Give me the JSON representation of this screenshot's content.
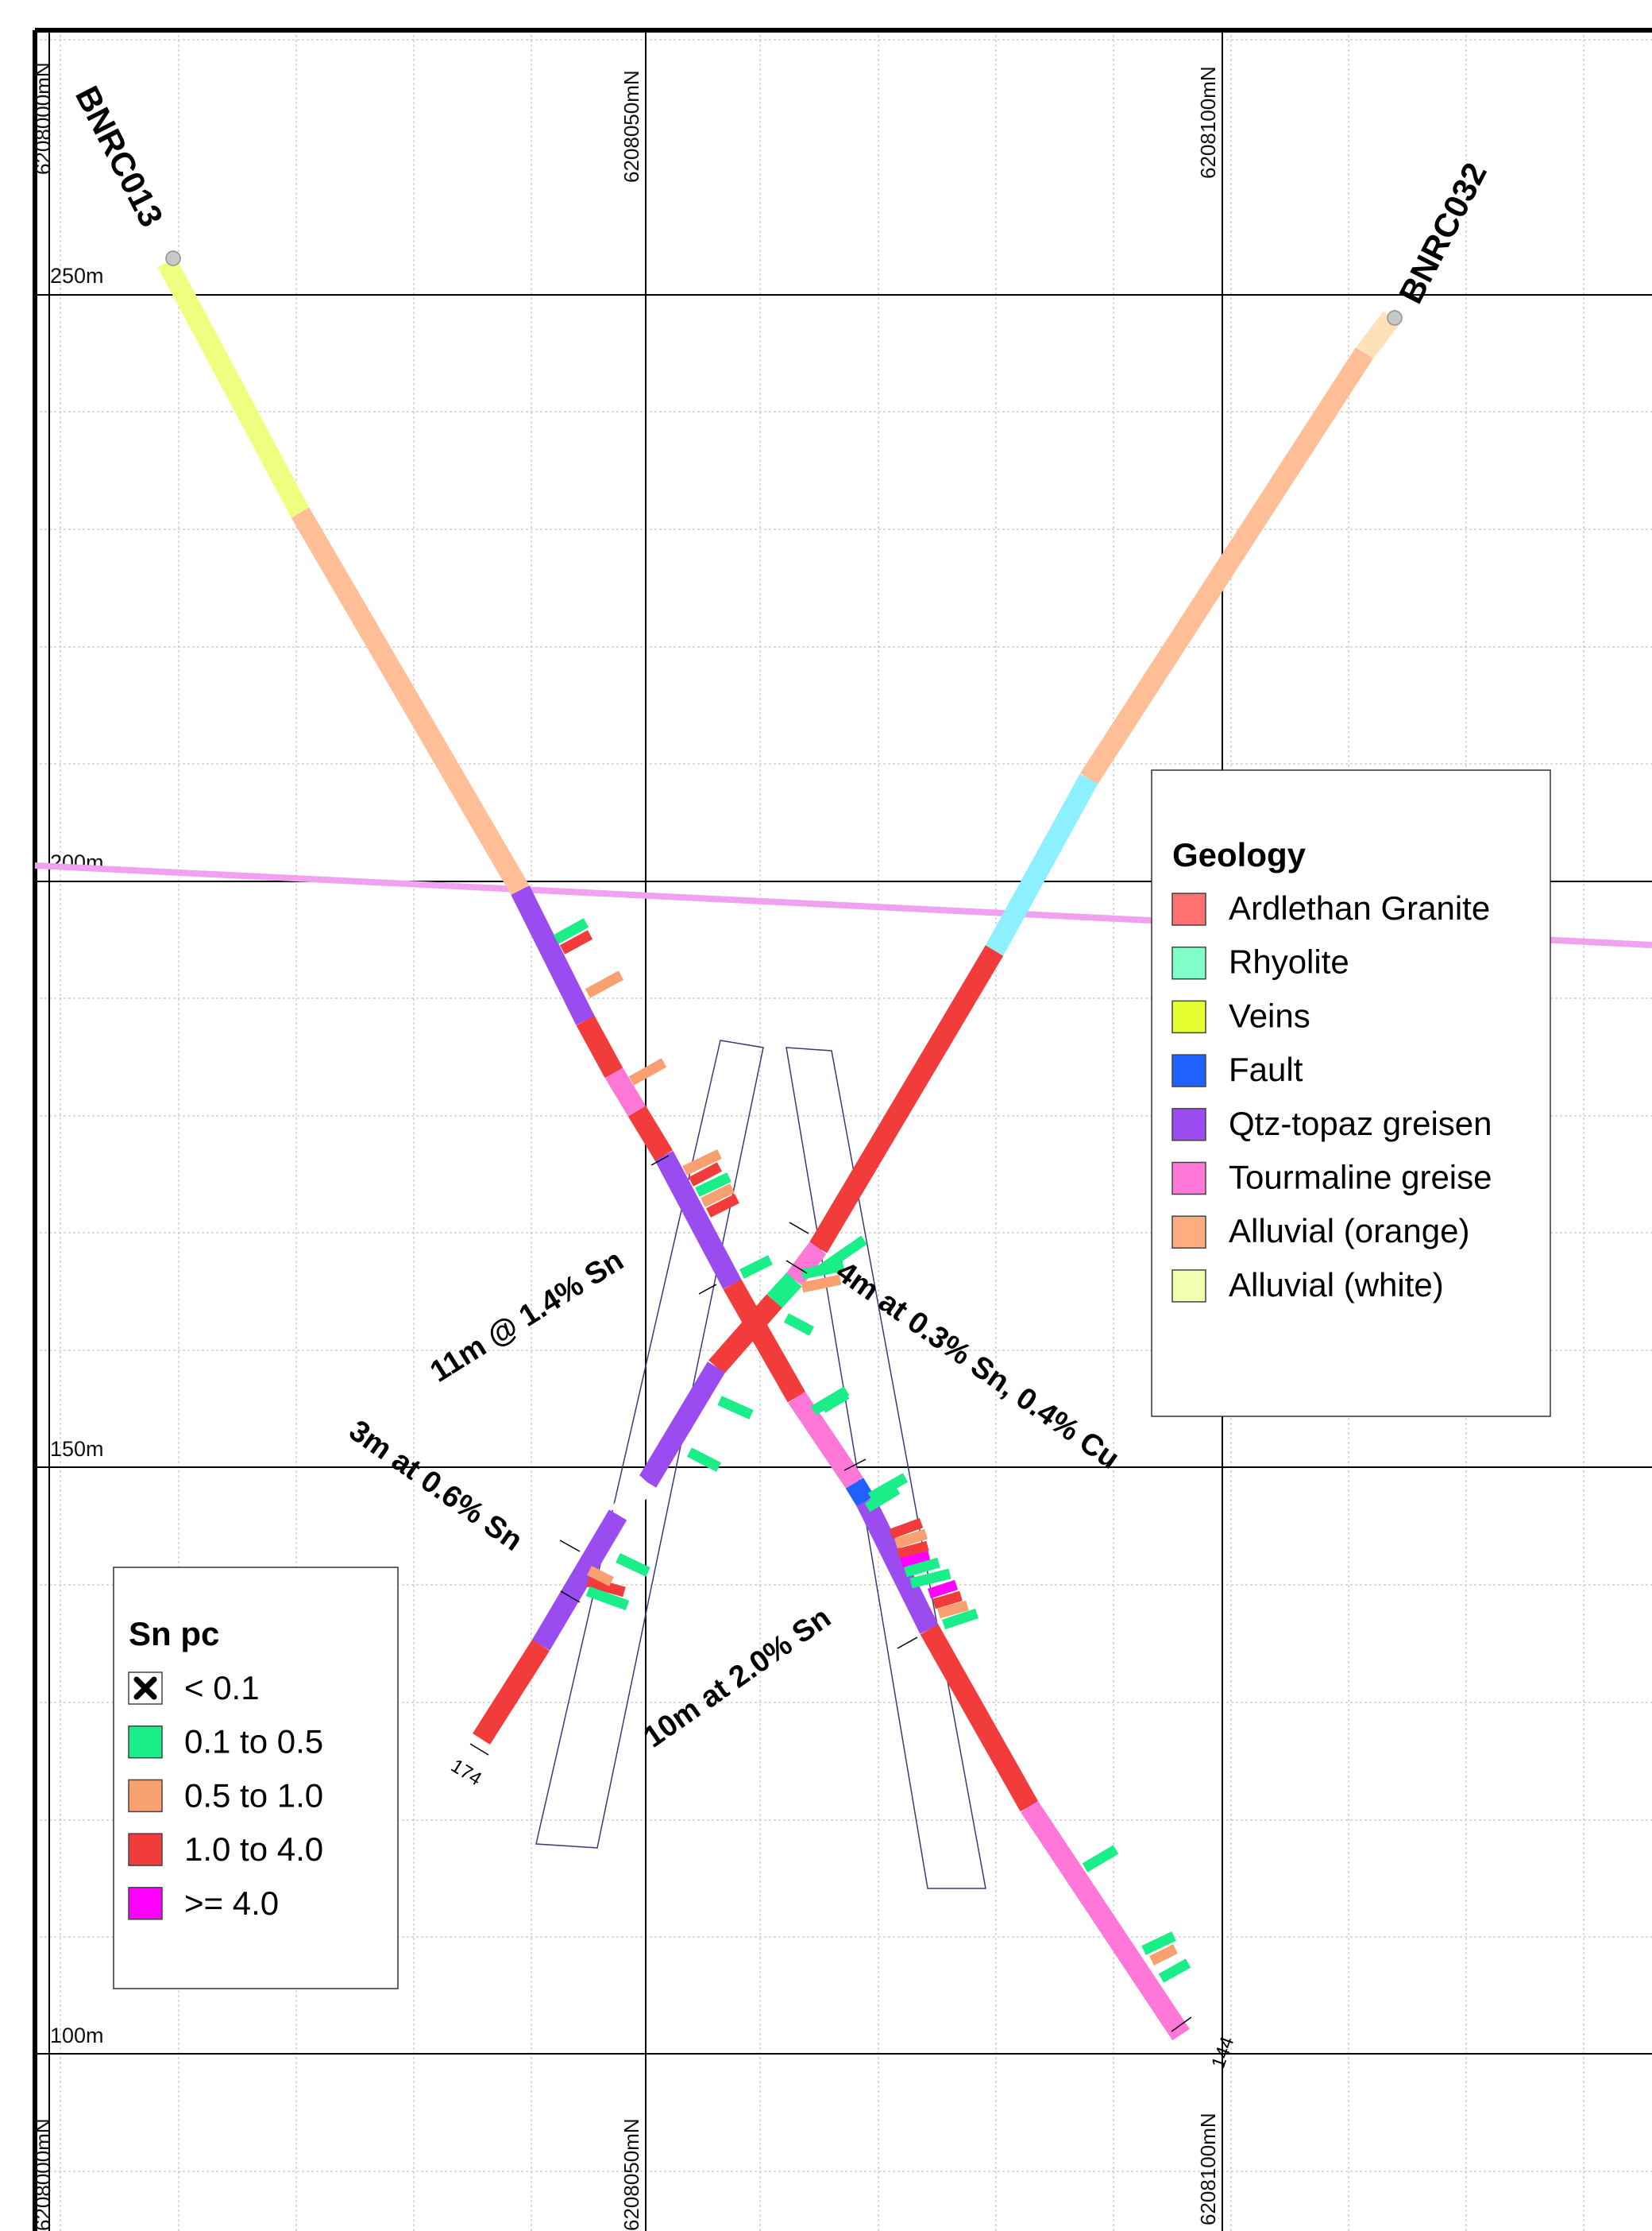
{
  "northing_labels": [
    {
      "id": "partial-left",
      "text": "6208000mN"
    },
    {
      "id": "mid",
      "text": "6208050mN"
    },
    {
      "id": "right",
      "text": "6208100mN"
    }
  ],
  "elevation_labels": [
    "250m",
    "200m",
    "150m",
    "100m"
  ],
  "drillholes": [
    {
      "name": "BNRC013",
      "end_depth": "144"
    },
    {
      "name": "BNRC032",
      "end_depth": "174"
    }
  ],
  "intercepts": [
    "11m @ 1.4% Sn",
    "4m at 0.3% Sn, 0.4% Cu",
    "3m at 0.6% Sn",
    "10m at 2.0% Sn"
  ],
  "geology_legend": {
    "title": "Geology",
    "items": [
      {
        "label": "Ardlethan Granite",
        "color": "#ff7070"
      },
      {
        "label": "Rhyolite",
        "color": "#80ffc8"
      },
      {
        "label": "Veins",
        "color": "#e6ff30"
      },
      {
        "label": "Fault",
        "color": "#2060ff"
      },
      {
        "label": "Qtz-topaz greisen",
        "color": "#9a4cf0"
      },
      {
        "label": "Tourmaline greise",
        "color": "#ff78d8"
      },
      {
        "label": "Alluvial (orange)",
        "color": "#ffac80"
      },
      {
        "label": "Alluvial (white)",
        "color": "#f0ffb0"
      }
    ]
  },
  "sn_legend": {
    "title": "Sn pc",
    "items": [
      {
        "label": "< 0.1",
        "symbol": "x-mark-icon"
      },
      {
        "label": "0.1 to 0.5",
        "color": "#1aee88"
      },
      {
        "label": "0.5 to 1.0",
        "color": "#f8a070"
      },
      {
        "label": "1.0 to 4.0",
        "color": "#f23c3c"
      },
      {
        "label": ">= 4.0",
        "color": "#ff00ff"
      }
    ]
  }
}
